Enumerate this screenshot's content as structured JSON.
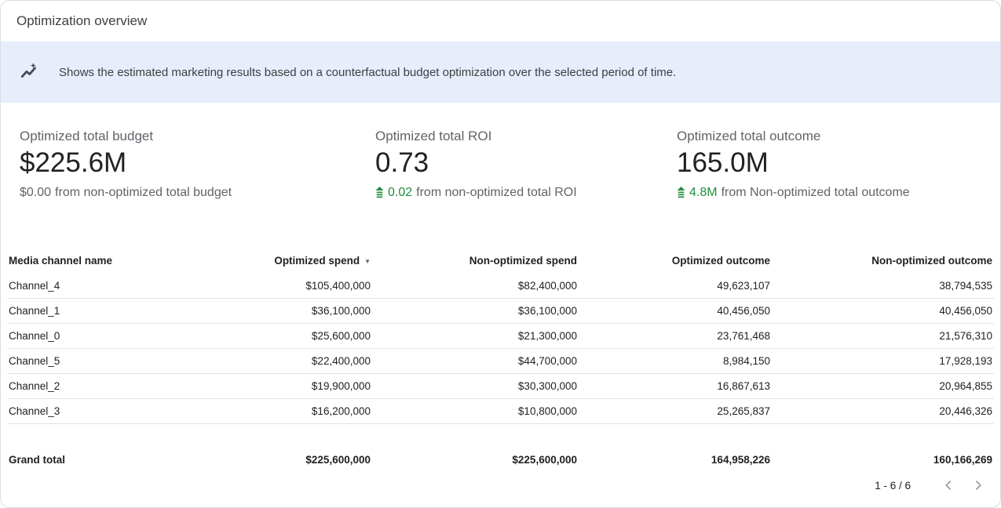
{
  "card": {
    "title": "Optimization overview"
  },
  "banner": {
    "icon": "trend-sparkle-icon",
    "text": "Shows the estimated marketing results based on a counterfactual budget optimization over the selected period of time."
  },
  "kpis": [
    {
      "label": "Optimized total budget",
      "value": "$225.6M",
      "delta_amount": "$0.00",
      "delta_text": "from non-optimized total budget",
      "delta_positive": false
    },
    {
      "label": "Optimized total ROI",
      "value": "0.73",
      "delta_amount": "0.02",
      "delta_text": "from non-optimized total ROI",
      "delta_positive": true
    },
    {
      "label": "Optimized total outcome",
      "value": "165.0M",
      "delta_amount": "4.8M",
      "delta_text": "from Non-optimized total outcome",
      "delta_positive": true
    }
  ],
  "colors": {
    "positive_green": "#1e8e3e",
    "banner_bg": "#e7edfb",
    "row_divider": "#e3e3e3"
  },
  "table": {
    "columns": [
      "Media channel name",
      "Optimized spend",
      "Non-optimized spend",
      "Optimized outcome",
      "Non-optimized outcome"
    ],
    "sorted_column": "Optimized spend",
    "sort_direction": "desc",
    "rows": [
      [
        "Channel_4",
        "$105,400,000",
        "$82,400,000",
        "49,623,107",
        "38,794,535"
      ],
      [
        "Channel_1",
        "$36,100,000",
        "$36,100,000",
        "40,456,050",
        "40,456,050"
      ],
      [
        "Channel_0",
        "$25,600,000",
        "$21,300,000",
        "23,761,468",
        "21,576,310"
      ],
      [
        "Channel_5",
        "$22,400,000",
        "$44,700,000",
        "8,984,150",
        "17,928,193"
      ],
      [
        "Channel_2",
        "$19,900,000",
        "$30,300,000",
        "16,867,613",
        "20,964,855"
      ],
      [
        "Channel_3",
        "$16,200,000",
        "$10,800,000",
        "25,265,837",
        "20,446,326"
      ]
    ],
    "grand_total": [
      "Grand total",
      "$225,600,000",
      "$225,600,000",
      "164,958,226",
      "160,166,269"
    ]
  },
  "pagination": {
    "range_label": "1 - 6 / 6"
  }
}
